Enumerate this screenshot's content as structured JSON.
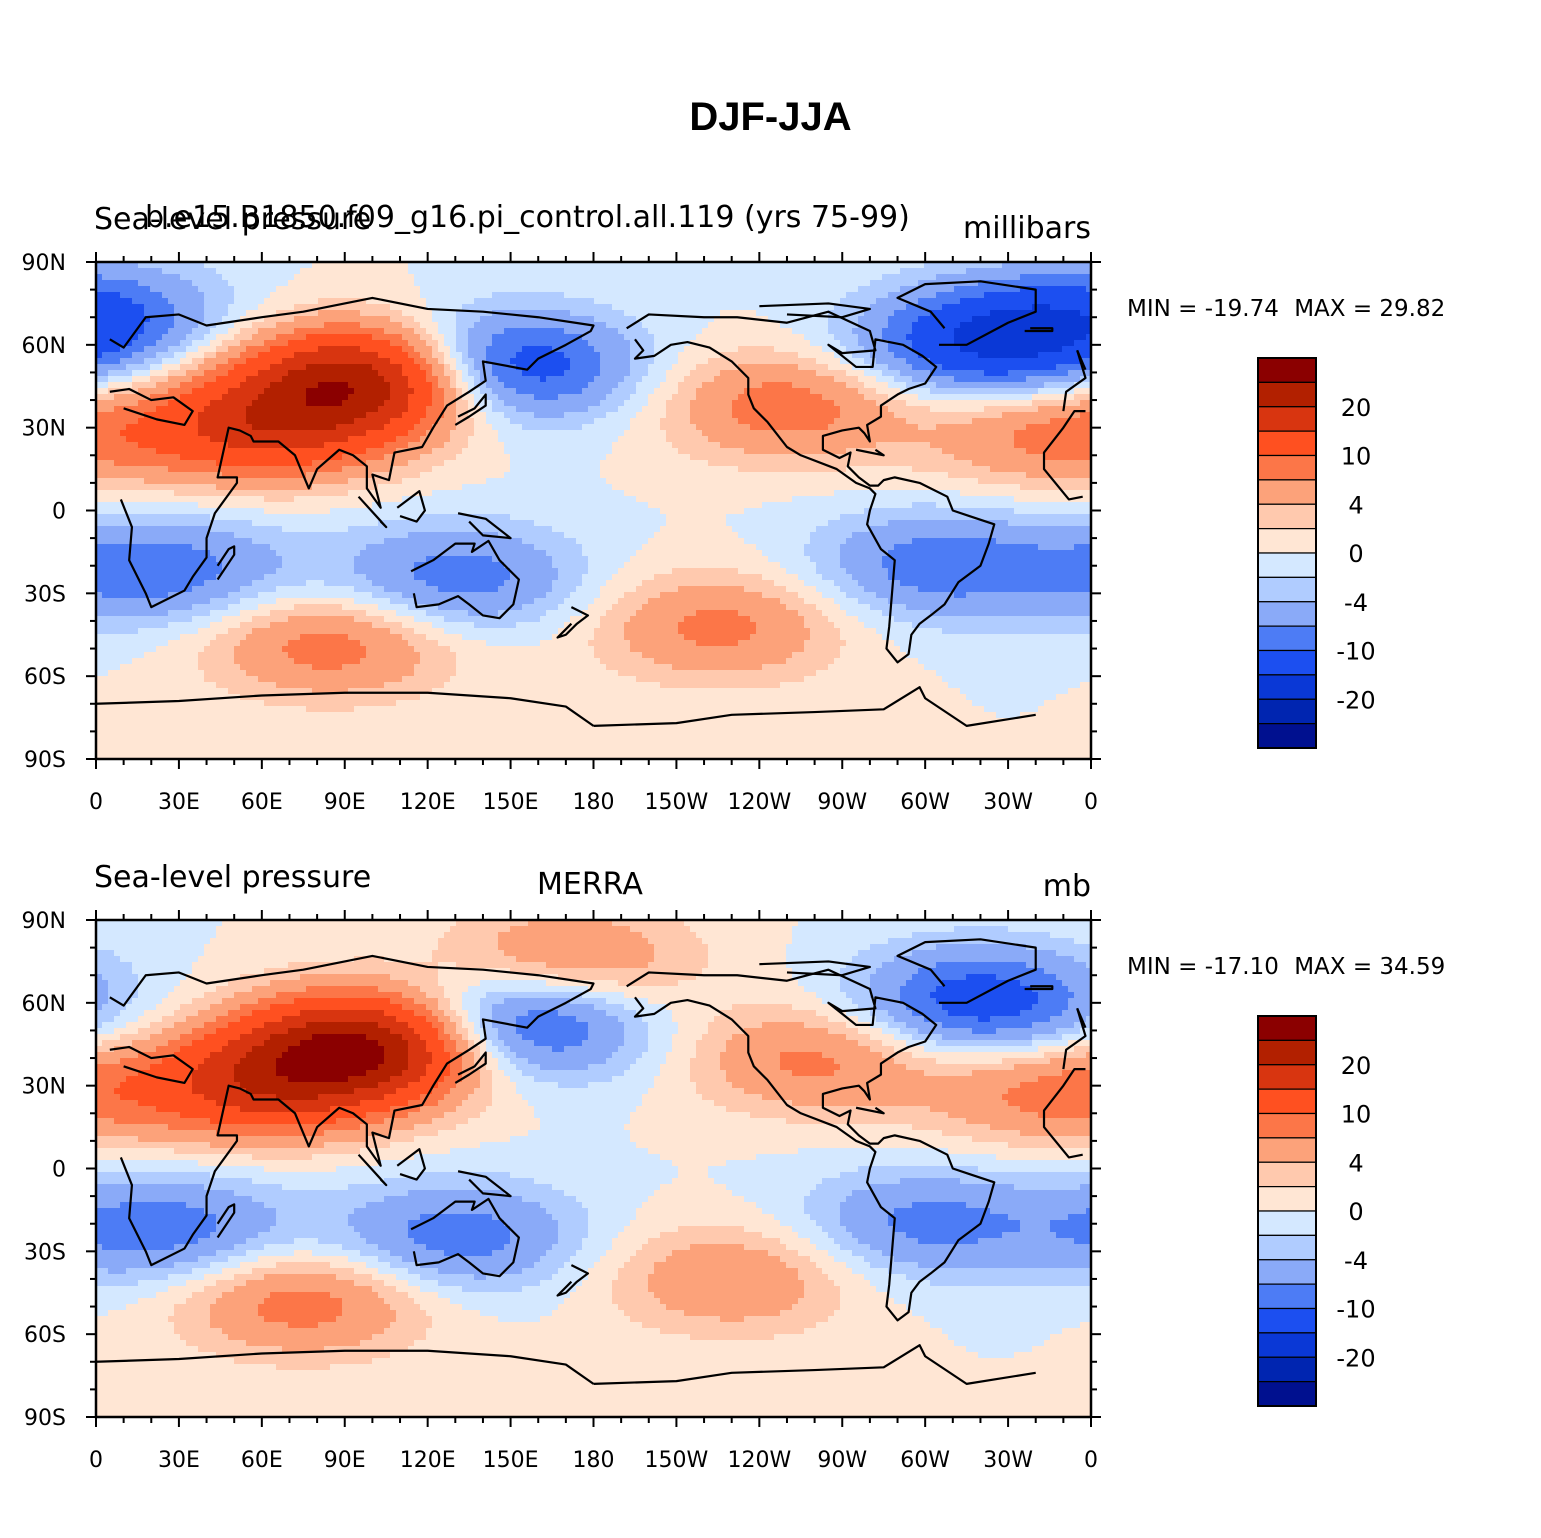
{
  "figure": {
    "title": "DJF-JJA"
  },
  "panels": [
    {
      "left_label": "Sea-level pressure",
      "center_label": "b.e15.B1850.f09_g16.pi_control.all.119 (yrs 75-99)",
      "right_label": "millibars",
      "min_label": "MIN = -19.74",
      "max_label": "MAX = 29.82",
      "min": -19.74,
      "max": 29.82
    },
    {
      "left_label": "Sea-level pressure",
      "center_label": "MERRA",
      "right_label": "mb",
      "min_label": "MIN = -17.10",
      "max_label": "MAX = 34.59",
      "min": -17.1,
      "max": 34.59
    }
  ],
  "chart_data": {
    "type": "heatmap",
    "map_type": "global filled-contour map (cylindrical equidistant), centered on 180",
    "variable": "Sea-level pressure difference DJF-JJA",
    "lat_ticks": [
      "90N",
      "60N",
      "30N",
      "0",
      "30S",
      "60S",
      "90S"
    ],
    "lon_ticks": [
      "0",
      "30E",
      "60E",
      "90E",
      "120E",
      "150E",
      "180",
      "150W",
      "120W",
      "90W",
      "60W",
      "30W",
      "0"
    ],
    "colorbar": {
      "labels": [
        "20",
        "10",
        "4",
        "0",
        "-4",
        "-10",
        "-20"
      ],
      "colors": [
        "#8b0000",
        "#b22000",
        "#d83510",
        "#ff5020",
        "#fc7648",
        "#fca27a",
        "#ffc9ae",
        "#ffe6d4",
        "#d4e8ff",
        "#b0ccff",
        "#8aaaf8",
        "#4d7cf5",
        "#1c4ff0",
        "#0a38d6",
        "#0025b0",
        "#00108f"
      ]
    },
    "series": [
      {
        "centers": [
          {
            "lon": 100,
            "lat": 48,
            "value": 25
          },
          {
            "lon": 60,
            "lat": 30,
            "value": 15
          },
          {
            "lon": 145,
            "lat": 52,
            "value": -17
          },
          {
            "lon": -40,
            "lat": 60,
            "value": -14
          },
          {
            "lon": -110,
            "lat": 38,
            "value": 9
          },
          {
            "lon": 25,
            "lat": -22,
            "value": -9
          },
          {
            "lon": 130,
            "lat": -25,
            "value": -9
          },
          {
            "lon": -55,
            "lat": -20,
            "value": -9
          },
          {
            "lon": 85,
            "lat": -48,
            "value": 9
          },
          {
            "lon": -135,
            "lat": -42,
            "value": 8
          },
          {
            "lon": -15,
            "lat": 28,
            "value": 8
          },
          {
            "lon": 0,
            "lat": 70,
            "value": -10
          }
        ]
      },
      {
        "centers": [
          {
            "lon": 100,
            "lat": 45,
            "value": 26
          },
          {
            "lon": 60,
            "lat": 30,
            "value": 15
          },
          {
            "lon": 150,
            "lat": 52,
            "value": -15
          },
          {
            "lon": -40,
            "lat": 60,
            "value": -13
          },
          {
            "lon": -100,
            "lat": 40,
            "value": 8
          },
          {
            "lon": 25,
            "lat": -22,
            "value": -9
          },
          {
            "lon": 130,
            "lat": -25,
            "value": -9
          },
          {
            "lon": -60,
            "lat": -20,
            "value": -8
          },
          {
            "lon": 75,
            "lat": -48,
            "value": 9
          },
          {
            "lon": -130,
            "lat": -40,
            "value": 7
          },
          {
            "lon": -15,
            "lat": 28,
            "value": 8
          },
          {
            "lon": 170,
            "lat": 75,
            "value": 8
          }
        ]
      }
    ]
  }
}
